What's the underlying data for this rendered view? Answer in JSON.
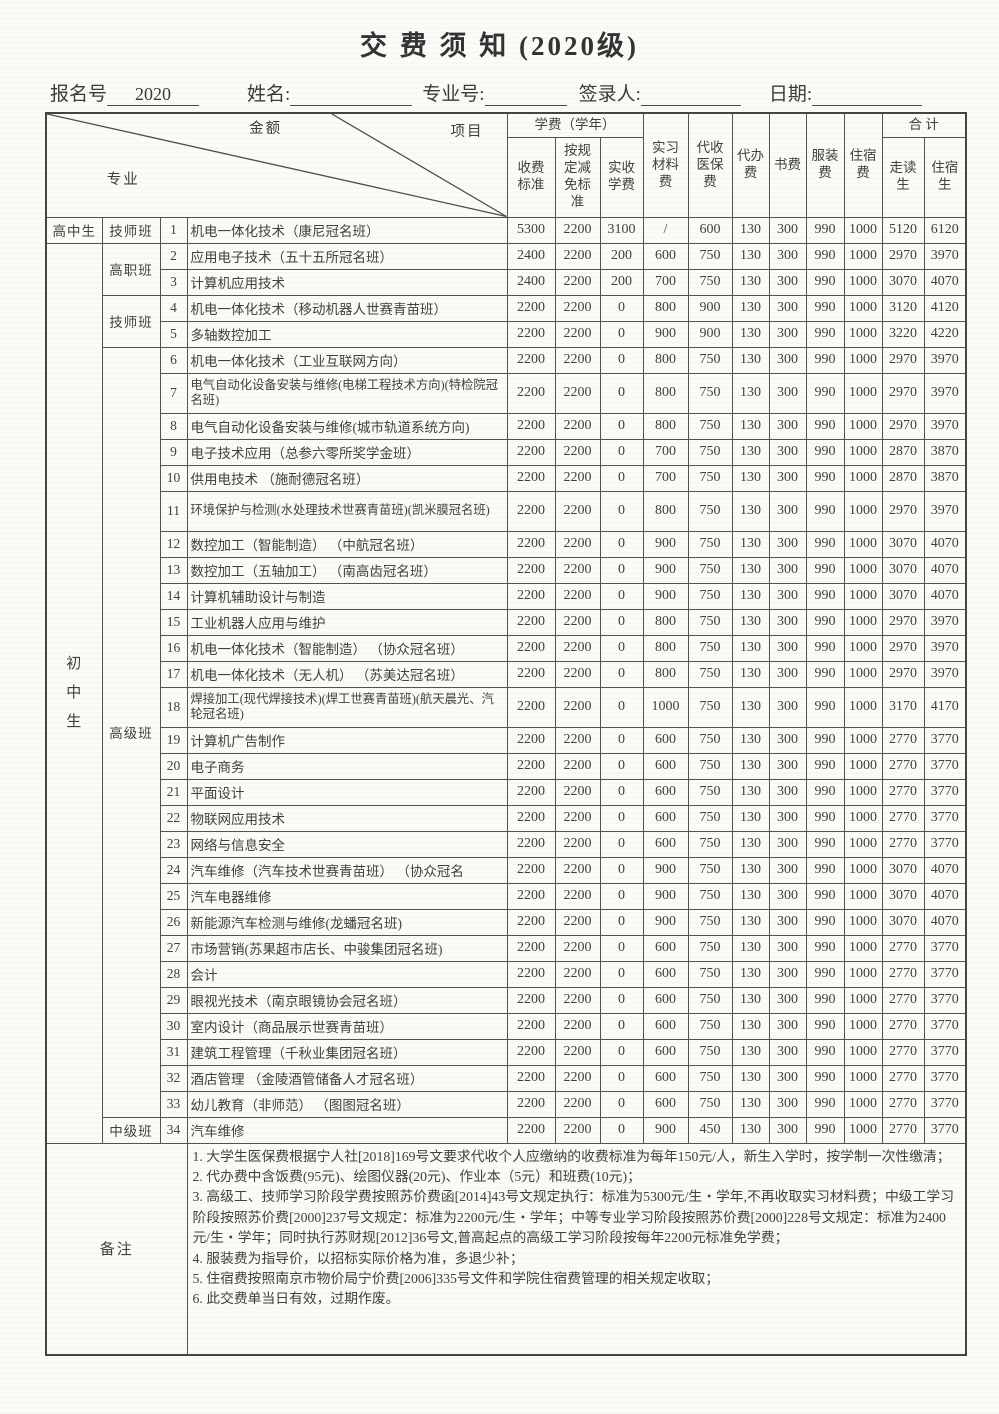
{
  "title": "交 费 须 知 (2020级)",
  "form": {
    "reg_no_label": "报名号",
    "reg_no_value": "2020",
    "name_label": "姓名:",
    "major_no_label": "专业号:",
    "registrar_label": "签录人:",
    "date_label": "日期:"
  },
  "table": {
    "diagonal": {
      "top_left": "金额",
      "top_right": "项目",
      "bottom_left": "专业"
    },
    "headers": {
      "tuition_group": "学费（学年）",
      "fee_standard": "收费\n标准",
      "reduction": "按规\n定减\n免标\n准",
      "actual_tuition": "实收\n学费",
      "material": "实习\n材料\n费",
      "medical": "代收\n医保\n费",
      "agency": "代办\n费",
      "books": "书费",
      "uniform": "服装\n费",
      "dorm": "住宿\n费",
      "total_group": "合  计",
      "total_day": "走读\n生",
      "total_boarding": "住宿\n生"
    },
    "row_groups": [
      {
        "col": "student-type",
        "start": 1,
        "span": 1,
        "label": "高中生",
        "vertical": false
      },
      {
        "col": "class-type",
        "start": 1,
        "span": 1,
        "label": "技师班",
        "vertical": false
      },
      {
        "col": "student-type",
        "start": 2,
        "span": 33,
        "label": "初中生",
        "vertical": true
      },
      {
        "col": "class-type",
        "start": 2,
        "span": 2,
        "label": "高职班",
        "vertical": false
      },
      {
        "col": "class-type",
        "start": 4,
        "span": 2,
        "label": "技师班",
        "vertical": false
      },
      {
        "col": "class-type",
        "start": 6,
        "span": 28,
        "label": "高级班",
        "vertical": false
      },
      {
        "col": "class-type",
        "start": 34,
        "span": 1,
        "label": "中级班",
        "vertical": false
      }
    ],
    "rows": [
      {
        "no": 1,
        "major": "机电一体化技术（康尼冠名班）",
        "tall": false,
        "values": [
          5300,
          2200,
          3100,
          "/",
          600,
          130,
          300,
          990,
          1000,
          5120,
          6120
        ]
      },
      {
        "no": 2,
        "major": "应用电子技术（五十五所冠名班）",
        "tall": false,
        "values": [
          2400,
          2200,
          200,
          600,
          750,
          130,
          300,
          990,
          1000,
          2970,
          3970
        ]
      },
      {
        "no": 3,
        "major": "计算机应用技术",
        "tall": false,
        "values": [
          2400,
          2200,
          200,
          700,
          750,
          130,
          300,
          990,
          1000,
          3070,
          4070
        ]
      },
      {
        "no": 4,
        "major": "机电一体化技术（移动机器人世赛青苗班）",
        "tall": false,
        "values": [
          2200,
          2200,
          0,
          800,
          900,
          130,
          300,
          990,
          1000,
          3120,
          4120
        ]
      },
      {
        "no": 5,
        "major": "多轴数控加工",
        "tall": false,
        "values": [
          2200,
          2200,
          0,
          900,
          900,
          130,
          300,
          990,
          1000,
          3220,
          4220
        ]
      },
      {
        "no": 6,
        "major": "机电一体化技术（工业互联网方向）",
        "tall": false,
        "values": [
          2200,
          2200,
          0,
          800,
          750,
          130,
          300,
          990,
          1000,
          2970,
          3970
        ]
      },
      {
        "no": 7,
        "major": "电气自动化设备安装与维修(电梯工程技术方向)(特检院冠名班)",
        "tall": true,
        "values": [
          2200,
          2200,
          0,
          800,
          750,
          130,
          300,
          990,
          1000,
          2970,
          3970
        ]
      },
      {
        "no": 8,
        "major": "电气自动化设备安装与维修(城市轨道系统方向)",
        "tall": false,
        "values": [
          2200,
          2200,
          0,
          800,
          750,
          130,
          300,
          990,
          1000,
          2970,
          3970
        ]
      },
      {
        "no": 9,
        "major": "电子技术应用（总参六零所奖学金班）",
        "tall": false,
        "values": [
          2200,
          2200,
          0,
          700,
          750,
          130,
          300,
          990,
          1000,
          2870,
          3870
        ]
      },
      {
        "no": 10,
        "major": "供用电技术 （施耐德冠名班）",
        "tall": false,
        "values": [
          2200,
          2200,
          0,
          700,
          750,
          130,
          300,
          990,
          1000,
          2870,
          3870
        ]
      },
      {
        "no": 11,
        "major": "环境保护与检测(水处理技术世赛青苗班)(凯米膜冠名班)",
        "tall": true,
        "values": [
          2200,
          2200,
          0,
          800,
          750,
          130,
          300,
          990,
          1000,
          2970,
          3970
        ]
      },
      {
        "no": 12,
        "major": "数控加工（智能制造） （中航冠名班）",
        "tall": false,
        "values": [
          2200,
          2200,
          0,
          900,
          750,
          130,
          300,
          990,
          1000,
          3070,
          4070
        ]
      },
      {
        "no": 13,
        "major": "数控加工（五轴加工） （南高齿冠名班）",
        "tall": false,
        "values": [
          2200,
          2200,
          0,
          900,
          750,
          130,
          300,
          990,
          1000,
          3070,
          4070
        ]
      },
      {
        "no": 14,
        "major": "计算机辅助设计与制造",
        "tall": false,
        "values": [
          2200,
          2200,
          0,
          900,
          750,
          130,
          300,
          990,
          1000,
          3070,
          4070
        ]
      },
      {
        "no": 15,
        "major": "工业机器人应用与维护",
        "tall": false,
        "values": [
          2200,
          2200,
          0,
          800,
          750,
          130,
          300,
          990,
          1000,
          2970,
          3970
        ]
      },
      {
        "no": 16,
        "major": "机电一体化技术（智能制造） （协众冠名班）",
        "tall": false,
        "values": [
          2200,
          2200,
          0,
          800,
          750,
          130,
          300,
          990,
          1000,
          2970,
          3970
        ]
      },
      {
        "no": 17,
        "major": "机电一体化技术（无人机） （苏美达冠名班）",
        "tall": false,
        "values": [
          2200,
          2200,
          0,
          800,
          750,
          130,
          300,
          990,
          1000,
          2970,
          3970
        ]
      },
      {
        "no": 18,
        "major": "焊接加工(现代焊接技术)(焊工世赛青苗班)(航天晨光、汽轮冠名班)",
        "tall": true,
        "values": [
          2200,
          2200,
          0,
          1000,
          750,
          130,
          300,
          990,
          1000,
          3170,
          4170
        ]
      },
      {
        "no": 19,
        "major": "计算机广告制作",
        "tall": false,
        "values": [
          2200,
          2200,
          0,
          600,
          750,
          130,
          300,
          990,
          1000,
          2770,
          3770
        ]
      },
      {
        "no": 20,
        "major": "电子商务",
        "tall": false,
        "values": [
          2200,
          2200,
          0,
          600,
          750,
          130,
          300,
          990,
          1000,
          2770,
          3770
        ]
      },
      {
        "no": 21,
        "major": "平面设计",
        "tall": false,
        "values": [
          2200,
          2200,
          0,
          600,
          750,
          130,
          300,
          990,
          1000,
          2770,
          3770
        ]
      },
      {
        "no": 22,
        "major": "物联网应用技术",
        "tall": false,
        "values": [
          2200,
          2200,
          0,
          600,
          750,
          130,
          300,
          990,
          1000,
          2770,
          3770
        ]
      },
      {
        "no": 23,
        "major": "网络与信息安全",
        "tall": false,
        "values": [
          2200,
          2200,
          0,
          600,
          750,
          130,
          300,
          990,
          1000,
          2770,
          3770
        ]
      },
      {
        "no": 24,
        "major": "汽车维修（汽车技术世赛青苗班） （协众冠名",
        "tall": false,
        "values": [
          2200,
          2200,
          0,
          900,
          750,
          130,
          300,
          990,
          1000,
          3070,
          4070
        ]
      },
      {
        "no": 25,
        "major": "汽车电器维修",
        "tall": false,
        "values": [
          2200,
          2200,
          0,
          900,
          750,
          130,
          300,
          990,
          1000,
          3070,
          4070
        ]
      },
      {
        "no": 26,
        "major": "新能源汽车检测与维修(龙蟠冠名班)",
        "tall": false,
        "values": [
          2200,
          2200,
          0,
          900,
          750,
          130,
          300,
          990,
          1000,
          3070,
          4070
        ]
      },
      {
        "no": 27,
        "major": "市场营销(苏果超市店长、中骏集团冠名班)",
        "tall": false,
        "values": [
          2200,
          2200,
          0,
          600,
          750,
          130,
          300,
          990,
          1000,
          2770,
          3770
        ]
      },
      {
        "no": 28,
        "major": "会计",
        "tall": false,
        "values": [
          2200,
          2200,
          0,
          600,
          750,
          130,
          300,
          990,
          1000,
          2770,
          3770
        ]
      },
      {
        "no": 29,
        "major": "眼视光技术（南京眼镜协会冠名班）",
        "tall": false,
        "values": [
          2200,
          2200,
          0,
          600,
          750,
          130,
          300,
          990,
          1000,
          2770,
          3770
        ]
      },
      {
        "no": 30,
        "major": "室内设计（商品展示世赛青苗班）",
        "tall": false,
        "values": [
          2200,
          2200,
          0,
          600,
          750,
          130,
          300,
          990,
          1000,
          2770,
          3770
        ]
      },
      {
        "no": 31,
        "major": "建筑工程管理（千秋业集团冠名班）",
        "tall": false,
        "values": [
          2200,
          2200,
          0,
          600,
          750,
          130,
          300,
          990,
          1000,
          2770,
          3770
        ]
      },
      {
        "no": 32,
        "major": "酒店管理 （金陵酒管储备人才冠名班）",
        "tall": false,
        "values": [
          2200,
          2200,
          0,
          600,
          750,
          130,
          300,
          990,
          1000,
          2770,
          3770
        ]
      },
      {
        "no": 33,
        "major": "幼儿教育（非师范） （图图冠名班）",
        "tall": false,
        "values": [
          2200,
          2200,
          0,
          600,
          750,
          130,
          300,
          990,
          1000,
          2770,
          3770
        ]
      },
      {
        "no": 34,
        "major": "汽车维修",
        "tall": false,
        "values": [
          2200,
          2200,
          0,
          900,
          450,
          130,
          300,
          990,
          1000,
          2770,
          3770
        ]
      }
    ]
  },
  "remarks": {
    "label": "备注",
    "items": [
      "1. 大学生医保费根据宁人社[2018]169号文要求代收个人应缴纳的收费标准为每年150元/人，新生入学时，按学制一次性缴清；",
      "2. 代办费中含饭费(95元)、绘图仪器(20元)、作业本（5元）和班费(10元)；",
      "3. 高级工、技师学习阶段学费按照苏价费函[2014]43号文规定执行：标准为5300元/生・学年,不再收取实习材料费；中级工学习阶段按照苏价费[2000]237号文规定：标准为2200元/生・学年；中等专业学习阶段按照苏价费[2000]228号文规定：标准为2400元/生・学年；同时执行苏财规[2012]36号文,普高起点的高级工学习阶段按每年2200元标准免学费；",
      "4. 服装费为指导价，以招标实际价格为准，多退少补；",
      "5. 住宿费按照南京市物价局宁价费[2006]335号文件和学院住宿费管理的相关规定收取；",
      "6. 此交费单当日有效，过期作废。"
    ]
  }
}
